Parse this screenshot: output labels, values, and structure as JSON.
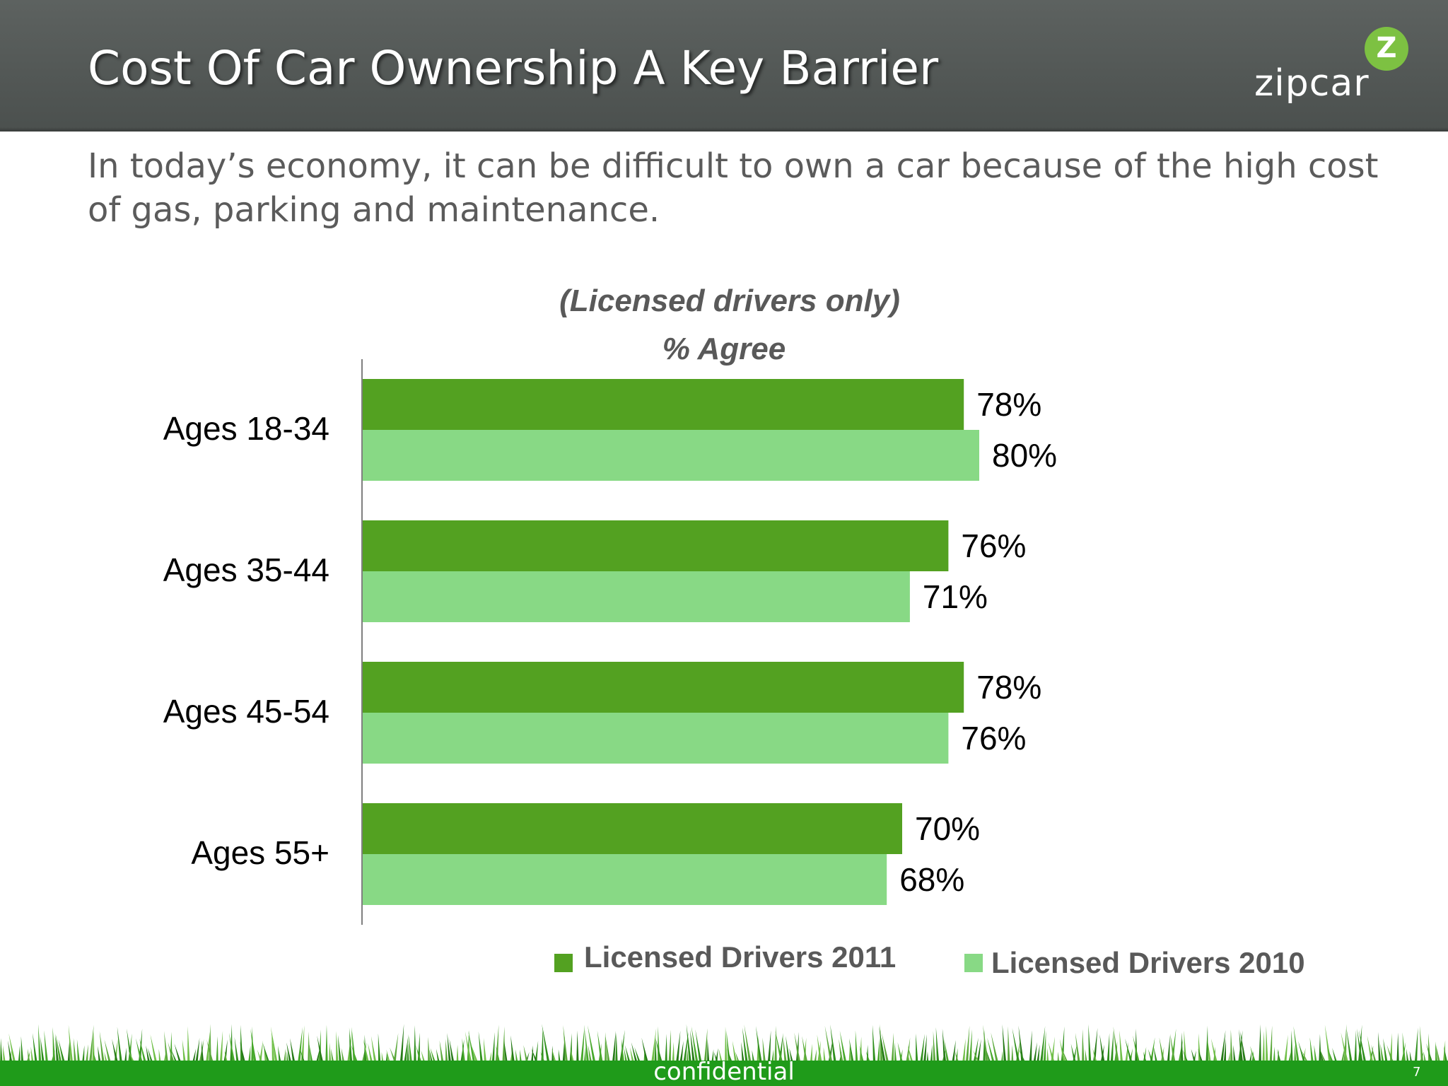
{
  "slide": {
    "title": "Cost Of Car Ownership A Key Barrier",
    "subtitle": "In today’s economy, it can be difficult to own a car because of the high cost of gas, parking and maintenance.",
    "logo": {
      "word": "zipcar",
      "badge": "Z"
    },
    "footer": "confidential",
    "page_number": "7"
  },
  "colors": {
    "header": "#545957",
    "series_2011": "#53a121",
    "series_2010": "#88d985",
    "footer": "#1f9b1a"
  },
  "chart_data": {
    "type": "bar",
    "orientation": "horizontal",
    "title": "(Licensed drivers only)",
    "subtitle": "% Agree",
    "categories": [
      "Ages 18-34",
      "Ages 35-44",
      "Ages 45-54",
      "Ages 55+"
    ],
    "series": [
      {
        "name": "Licensed Drivers 2011",
        "values": [
          78,
          76,
          78,
          70
        ],
        "labels": [
          "78%",
          "76%",
          "78%",
          "70%"
        ]
      },
      {
        "name": "Licensed Drivers 2010",
        "values": [
          80,
          71,
          76,
          68
        ],
        "labels": [
          "80%",
          "71%",
          "76%",
          "68%"
        ]
      }
    ],
    "xlim": [
      0,
      100
    ],
    "grid": false,
    "legend": "bottom"
  }
}
